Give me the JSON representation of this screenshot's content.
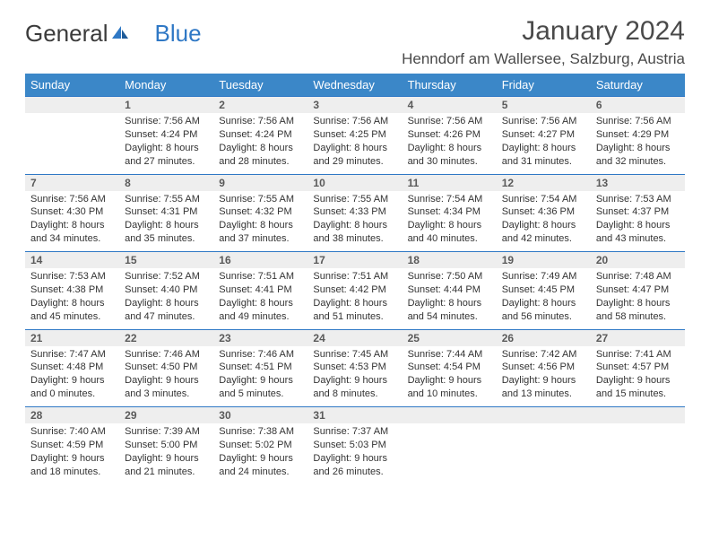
{
  "brand": {
    "part1": "General",
    "part2": "Blue"
  },
  "title": "January 2024",
  "location": "Henndorf am Wallersee, Salzburg, Austria",
  "weekdays": [
    "Sunday",
    "Monday",
    "Tuesday",
    "Wednesday",
    "Thursday",
    "Friday",
    "Saturday"
  ],
  "colors": {
    "header_bg": "#3b87c8",
    "header_text": "#ffffff",
    "daynum_bg": "#eeeeee",
    "daynum_border": "#2f78c5",
    "text": "#333333",
    "brand_blue": "#2f78c5"
  },
  "fonts": {
    "base_family": "Arial",
    "title_size_pt": 22,
    "location_size_pt": 13,
    "weekday_size_pt": 10,
    "cell_size_pt": 8
  },
  "weeks": [
    [
      null,
      {
        "n": "1",
        "sunrise": "Sunrise: 7:56 AM",
        "sunset": "Sunset: 4:24 PM",
        "day1": "Daylight: 8 hours",
        "day2": "and 27 minutes."
      },
      {
        "n": "2",
        "sunrise": "Sunrise: 7:56 AM",
        "sunset": "Sunset: 4:24 PM",
        "day1": "Daylight: 8 hours",
        "day2": "and 28 minutes."
      },
      {
        "n": "3",
        "sunrise": "Sunrise: 7:56 AM",
        "sunset": "Sunset: 4:25 PM",
        "day1": "Daylight: 8 hours",
        "day2": "and 29 minutes."
      },
      {
        "n": "4",
        "sunrise": "Sunrise: 7:56 AM",
        "sunset": "Sunset: 4:26 PM",
        "day1": "Daylight: 8 hours",
        "day2": "and 30 minutes."
      },
      {
        "n": "5",
        "sunrise": "Sunrise: 7:56 AM",
        "sunset": "Sunset: 4:27 PM",
        "day1": "Daylight: 8 hours",
        "day2": "and 31 minutes."
      },
      {
        "n": "6",
        "sunrise": "Sunrise: 7:56 AM",
        "sunset": "Sunset: 4:29 PM",
        "day1": "Daylight: 8 hours",
        "day2": "and 32 minutes."
      }
    ],
    [
      {
        "n": "7",
        "sunrise": "Sunrise: 7:56 AM",
        "sunset": "Sunset: 4:30 PM",
        "day1": "Daylight: 8 hours",
        "day2": "and 34 minutes."
      },
      {
        "n": "8",
        "sunrise": "Sunrise: 7:55 AM",
        "sunset": "Sunset: 4:31 PM",
        "day1": "Daylight: 8 hours",
        "day2": "and 35 minutes."
      },
      {
        "n": "9",
        "sunrise": "Sunrise: 7:55 AM",
        "sunset": "Sunset: 4:32 PM",
        "day1": "Daylight: 8 hours",
        "day2": "and 37 minutes."
      },
      {
        "n": "10",
        "sunrise": "Sunrise: 7:55 AM",
        "sunset": "Sunset: 4:33 PM",
        "day1": "Daylight: 8 hours",
        "day2": "and 38 minutes."
      },
      {
        "n": "11",
        "sunrise": "Sunrise: 7:54 AM",
        "sunset": "Sunset: 4:34 PM",
        "day1": "Daylight: 8 hours",
        "day2": "and 40 minutes."
      },
      {
        "n": "12",
        "sunrise": "Sunrise: 7:54 AM",
        "sunset": "Sunset: 4:36 PM",
        "day1": "Daylight: 8 hours",
        "day2": "and 42 minutes."
      },
      {
        "n": "13",
        "sunrise": "Sunrise: 7:53 AM",
        "sunset": "Sunset: 4:37 PM",
        "day1": "Daylight: 8 hours",
        "day2": "and 43 minutes."
      }
    ],
    [
      {
        "n": "14",
        "sunrise": "Sunrise: 7:53 AM",
        "sunset": "Sunset: 4:38 PM",
        "day1": "Daylight: 8 hours",
        "day2": "and 45 minutes."
      },
      {
        "n": "15",
        "sunrise": "Sunrise: 7:52 AM",
        "sunset": "Sunset: 4:40 PM",
        "day1": "Daylight: 8 hours",
        "day2": "and 47 minutes."
      },
      {
        "n": "16",
        "sunrise": "Sunrise: 7:51 AM",
        "sunset": "Sunset: 4:41 PM",
        "day1": "Daylight: 8 hours",
        "day2": "and 49 minutes."
      },
      {
        "n": "17",
        "sunrise": "Sunrise: 7:51 AM",
        "sunset": "Sunset: 4:42 PM",
        "day1": "Daylight: 8 hours",
        "day2": "and 51 minutes."
      },
      {
        "n": "18",
        "sunrise": "Sunrise: 7:50 AM",
        "sunset": "Sunset: 4:44 PM",
        "day1": "Daylight: 8 hours",
        "day2": "and 54 minutes."
      },
      {
        "n": "19",
        "sunrise": "Sunrise: 7:49 AM",
        "sunset": "Sunset: 4:45 PM",
        "day1": "Daylight: 8 hours",
        "day2": "and 56 minutes."
      },
      {
        "n": "20",
        "sunrise": "Sunrise: 7:48 AM",
        "sunset": "Sunset: 4:47 PM",
        "day1": "Daylight: 8 hours",
        "day2": "and 58 minutes."
      }
    ],
    [
      {
        "n": "21",
        "sunrise": "Sunrise: 7:47 AM",
        "sunset": "Sunset: 4:48 PM",
        "day1": "Daylight: 9 hours",
        "day2": "and 0 minutes."
      },
      {
        "n": "22",
        "sunrise": "Sunrise: 7:46 AM",
        "sunset": "Sunset: 4:50 PM",
        "day1": "Daylight: 9 hours",
        "day2": "and 3 minutes."
      },
      {
        "n": "23",
        "sunrise": "Sunrise: 7:46 AM",
        "sunset": "Sunset: 4:51 PM",
        "day1": "Daylight: 9 hours",
        "day2": "and 5 minutes."
      },
      {
        "n": "24",
        "sunrise": "Sunrise: 7:45 AM",
        "sunset": "Sunset: 4:53 PM",
        "day1": "Daylight: 9 hours",
        "day2": "and 8 minutes."
      },
      {
        "n": "25",
        "sunrise": "Sunrise: 7:44 AM",
        "sunset": "Sunset: 4:54 PM",
        "day1": "Daylight: 9 hours",
        "day2": "and 10 minutes."
      },
      {
        "n": "26",
        "sunrise": "Sunrise: 7:42 AM",
        "sunset": "Sunset: 4:56 PM",
        "day1": "Daylight: 9 hours",
        "day2": "and 13 minutes."
      },
      {
        "n": "27",
        "sunrise": "Sunrise: 7:41 AM",
        "sunset": "Sunset: 4:57 PM",
        "day1": "Daylight: 9 hours",
        "day2": "and 15 minutes."
      }
    ],
    [
      {
        "n": "28",
        "sunrise": "Sunrise: 7:40 AM",
        "sunset": "Sunset: 4:59 PM",
        "day1": "Daylight: 9 hours",
        "day2": "and 18 minutes."
      },
      {
        "n": "29",
        "sunrise": "Sunrise: 7:39 AM",
        "sunset": "Sunset: 5:00 PM",
        "day1": "Daylight: 9 hours",
        "day2": "and 21 minutes."
      },
      {
        "n": "30",
        "sunrise": "Sunrise: 7:38 AM",
        "sunset": "Sunset: 5:02 PM",
        "day1": "Daylight: 9 hours",
        "day2": "and 24 minutes."
      },
      {
        "n": "31",
        "sunrise": "Sunrise: 7:37 AM",
        "sunset": "Sunset: 5:03 PM",
        "day1": "Daylight: 9 hours",
        "day2": "and 26 minutes."
      },
      null,
      null,
      null
    ]
  ]
}
